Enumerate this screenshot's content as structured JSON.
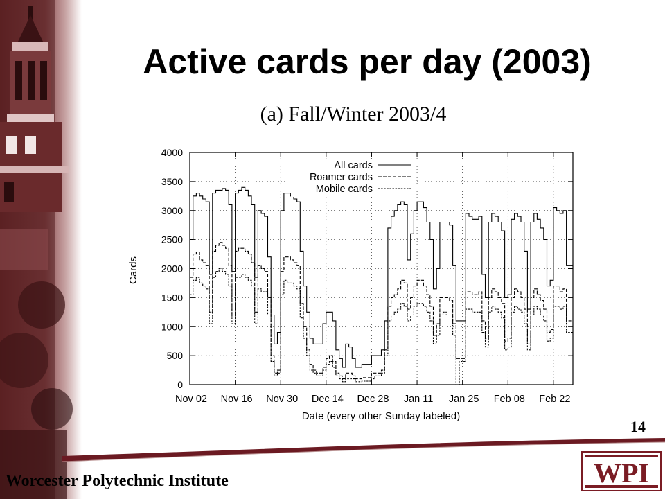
{
  "slide": {
    "title": "Active cards per day (2003)",
    "subtitle": "(a) Fall/Winter 2003/4",
    "page_number": "14",
    "footer": "Worcester Polytechnic Institute",
    "logo_text": "WPI"
  },
  "colors": {
    "brand_maroon": "#7a1c24",
    "sidebar_dark": "#5a1d20",
    "sidebar_light": "#c7a3a3",
    "line": "#000000"
  },
  "chart_data": {
    "type": "line",
    "style": "step",
    "xlabel": "Date (every other Sunday labeled)",
    "ylabel": "Cards",
    "xlim": [
      0,
      118
    ],
    "ylim": [
      0,
      4000
    ],
    "yticks": [
      0,
      500,
      1000,
      1500,
      2000,
      2500,
      3000,
      3500,
      4000
    ],
    "xtick_positions": [
      0,
      14,
      28,
      42,
      56,
      70,
      84,
      98,
      112
    ],
    "xtick_labels": [
      "Nov 02",
      "Nov 16",
      "Nov 30",
      "Dec 14",
      "Dec 28",
      "Jan 11",
      "Jan 25",
      "Feb 08",
      "Feb 22"
    ],
    "grid": true,
    "legend_position": "top-right",
    "series": [
      {
        "name": "All cards",
        "dash": "solid",
        "values": [
          2500,
          3250,
          3300,
          3250,
          3200,
          3150,
          1900,
          3300,
          3350,
          3350,
          3380,
          3350,
          3100,
          1950,
          3300,
          3350,
          3400,
          3350,
          3250,
          3100,
          1850,
          3000,
          2950,
          2900,
          2200,
          1200,
          700,
          900,
          3000,
          3300,
          3300,
          3250,
          3200,
          3150,
          2300,
          1700,
          1250,
          800,
          700,
          700,
          700,
          1050,
          1250,
          1250,
          1100,
          600,
          450,
          300,
          700,
          650,
          450,
          300,
          300,
          350,
          350,
          350,
          500,
          500,
          500,
          600,
          1100,
          2700,
          2900,
          3000,
          3100,
          3150,
          3100,
          2150,
          2600,
          3000,
          3150,
          3150,
          3050,
          2800,
          2500,
          1650,
          2000,
          2800,
          2800,
          2800,
          2750,
          2050,
          1100,
          1100,
          1100,
          2950,
          2900,
          2850,
          2850,
          2900,
          1900,
          1500,
          2800,
          2950,
          2900,
          2800,
          2650,
          1500,
          1550,
          2850,
          2950,
          2900,
          2800,
          2300,
          1300,
          2800,
          2950,
          2850,
          2700,
          2500,
          1700,
          1800,
          3050,
          3000,
          2950,
          3000,
          2050,
          2050
        ]
      },
      {
        "name": "Roamer cards",
        "dash": "long",
        "values": [
          1850,
          2250,
          2280,
          2150,
          2100,
          2050,
          1250,
          2300,
          2400,
          2450,
          2400,
          2350,
          2050,
          1200,
          2300,
          2350,
          2350,
          2300,
          2250,
          2100,
          1250,
          2050,
          2000,
          1950,
          1500,
          500,
          200,
          250,
          1950,
          2200,
          2200,
          2150,
          2100,
          2050,
          1400,
          1000,
          600,
          350,
          250,
          200,
          200,
          300,
          450,
          500,
          400,
          200,
          150,
          100,
          200,
          200,
          150,
          100,
          100,
          120,
          120,
          120,
          200,
          200,
          200,
          250,
          600,
          1350,
          1500,
          1550,
          1650,
          1800,
          1750,
          1300,
          1500,
          1700,
          1800,
          1800,
          1700,
          1550,
          1350,
          850,
          1050,
          1500,
          1500,
          1500,
          1450,
          1050,
          450,
          450,
          450,
          1600,
          1600,
          1550,
          1550,
          1600,
          1100,
          800,
          1500,
          1650,
          1600,
          1500,
          1400,
          750,
          800,
          1500,
          1650,
          1600,
          1500,
          1300,
          700,
          1500,
          1650,
          1550,
          1450,
          1300,
          900,
          950,
          1700,
          1700,
          1600,
          1650,
          1100,
          1100
        ]
      },
      {
        "name": "Mobile cards",
        "dash": "short",
        "values": [
          1550,
          1800,
          1850,
          1750,
          1700,
          1650,
          1050,
          1850,
          1950,
          2000,
          1950,
          1900,
          1700,
          1050,
          1850,
          1850,
          1900,
          1850,
          1800,
          1700,
          1050,
          1650,
          1600,
          1600,
          1200,
          400,
          150,
          200,
          1550,
          1800,
          1750,
          1750,
          1700,
          1650,
          1150,
          800,
          500,
          250,
          200,
          150,
          150,
          250,
          350,
          400,
          300,
          150,
          100,
          50,
          100,
          100,
          100,
          50,
          50,
          60,
          60,
          60,
          100,
          150,
          150,
          200,
          500,
          1100,
          1200,
          1250,
          1300,
          1400,
          1350,
          1100,
          1200,
          1350,
          1400,
          1400,
          1350,
          1250,
          1100,
          700,
          850,
          1200,
          1250,
          1200,
          1200,
          850,
          0,
          400,
          400,
          1300,
          1300,
          1250,
          1250,
          1250,
          900,
          650,
          1250,
          1350,
          1300,
          1250,
          1150,
          600,
          650,
          1250,
          1350,
          1300,
          1250,
          1050,
          600,
          1200,
          1350,
          1300,
          1200,
          1100,
          750,
          800,
          1350,
          1350,
          1300,
          1350,
          900,
          900
        ]
      }
    ]
  }
}
